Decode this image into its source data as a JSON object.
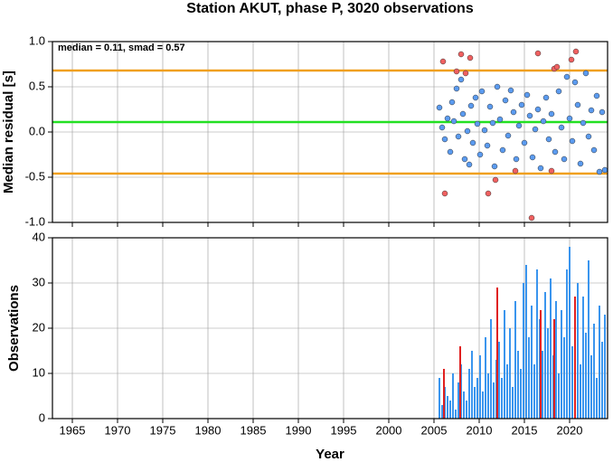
{
  "chart_data": [
    {
      "type": "scatter",
      "title": "Station AKUT, phase P, 3020 observations",
      "ylabel": "Median residual [s]",
      "annotation": "median = 0.11, smad = 0.57",
      "xlim": [
        1962.8,
        2024.2
      ],
      "xticks": [
        1965,
        1970,
        1975,
        1980,
        1985,
        1990,
        1995,
        2000,
        2005,
        2010,
        2015,
        2020
      ],
      "ylim": [
        -1,
        1
      ],
      "yticks": [
        {
          "value": -1,
          "label": "-1.0"
        },
        -0.5,
        {
          "value": 0,
          "label": "0.0"
        },
        0.5,
        {
          "value": 1,
          "label": "1.0"
        }
      ],
      "grid": true,
      "hlines": [
        {
          "value": 0.68,
          "color": "#f0a020"
        },
        {
          "value": -0.46,
          "color": "#f0a020"
        },
        {
          "value": 0.11,
          "color": "#22e022"
        }
      ],
      "series": [
        {
          "color": "#5b9bf0",
          "x": [
            2005.6,
            2005.9,
            2006.2,
            2006.5,
            2006.8,
            2007.0,
            2007.2,
            2007.5,
            2007.7,
            2008.0,
            2008.2,
            2008.4,
            2008.7,
            2008.9,
            2009.1,
            2009.3,
            2009.6,
            2009.8,
            2010.1,
            2010.3,
            2010.6,
            2010.9,
            2011.2,
            2011.5,
            2011.7,
            2012.0,
            2012.3,
            2012.6,
            2012.9,
            2013.2,
            2013.5,
            2013.8,
            2014.1,
            2014.4,
            2014.7,
            2015.0,
            2015.3,
            2015.6,
            2015.9,
            2016.2,
            2016.5,
            2016.8,
            2017.1,
            2017.4,
            2017.7,
            2018.0,
            2018.4,
            2018.8,
            2019.1,
            2019.4,
            2019.7,
            2020.0,
            2020.3,
            2020.6,
            2020.9,
            2021.2,
            2021.5,
            2021.8,
            2022.1,
            2022.4,
            2022.7,
            2023.0,
            2023.3,
            2023.6,
            2023.9
          ],
          "values": [
            0.27,
            0.05,
            -0.08,
            0.15,
            -0.22,
            0.33,
            0.12,
            0.48,
            -0.05,
            0.58,
            0.2,
            -0.3,
            0.01,
            -0.36,
            0.29,
            -0.12,
            0.38,
            0.09,
            -0.25,
            0.45,
            0.02,
            -0.15,
            0.28,
            0.1,
            -0.38,
            0.5,
            0.14,
            -0.2,
            0.35,
            -0.04,
            0.46,
            0.22,
            -0.3,
            0.07,
            0.3,
            -0.12,
            0.41,
            0.18,
            -0.28,
            0.03,
            0.25,
            -0.4,
            0.12,
            0.38,
            -0.08,
            0.2,
            -0.22,
            0.45,
            0.05,
            -0.3,
            0.61,
            0.15,
            -0.1,
            0.55,
            0.3,
            -0.35,
            0.1,
            0.65,
            -0.05,
            0.24,
            -0.2,
            0.4,
            -0.44,
            0.22,
            -0.42
          ]
        },
        {
          "color": "#f06060",
          "x": [
            2006.0,
            2006.2,
            2007.5,
            2008.0,
            2008.5,
            2009.0,
            2011.0,
            2011.8,
            2014.0,
            2015.8,
            2016.5,
            2018.0,
            2018.3,
            2018.6,
            2020.2,
            2020.7
          ],
          "values": [
            0.78,
            -0.68,
            0.67,
            0.86,
            0.65,
            0.82,
            -0.68,
            -0.53,
            -0.43,
            -0.95,
            0.87,
            -0.43,
            0.7,
            0.72,
            0.8,
            0.89
          ]
        }
      ]
    },
    {
      "type": "bar",
      "ylabel": "Observations",
      "xlabel": "Year",
      "xlim": [
        1962.8,
        2024.2
      ],
      "xticks": [
        1965,
        1970,
        1975,
        1980,
        1985,
        1990,
        1995,
        2000,
        2005,
        2010,
        2015,
        2020
      ],
      "ylim": [
        0,
        40
      ],
      "yticks": [
        0,
        10,
        20,
        30,
        40
      ],
      "grid": true,
      "series": [
        {
          "color": "#3a95ee",
          "x": [
            2005.6,
            2005.9,
            2006.2,
            2006.5,
            2006.8,
            2007.1,
            2007.4,
            2007.7,
            2008.0,
            2008.3,
            2008.6,
            2008.9,
            2009.2,
            2009.5,
            2009.8,
            2010.1,
            2010.4,
            2010.7,
            2011.0,
            2011.3,
            2011.6,
            2011.9,
            2012.2,
            2012.5,
            2012.8,
            2013.1,
            2013.4,
            2013.7,
            2014.0,
            2014.3,
            2014.6,
            2014.9,
            2015.2,
            2015.5,
            2015.8,
            2016.1,
            2016.4,
            2016.7,
            2017.0,
            2017.3,
            2017.6,
            2017.9,
            2018.2,
            2018.5,
            2018.8,
            2019.1,
            2019.4,
            2019.7,
            2020.0,
            2020.3,
            2020.6,
            2020.9,
            2021.2,
            2021.5,
            2021.8,
            2022.1,
            2022.4,
            2022.7,
            2023.0,
            2023.3,
            2023.6,
            2023.9
          ],
          "values": [
            9,
            3,
            7,
            5,
            4,
            10,
            2,
            8,
            12,
            6,
            4,
            11,
            15,
            7,
            9,
            14,
            6,
            18,
            10,
            22,
            8,
            13,
            17,
            9,
            24,
            12,
            20,
            7,
            26,
            15,
            11,
            30,
            34,
            18,
            25,
            12,
            33,
            22,
            15,
            28,
            20,
            31,
            14,
            26,
            10,
            24,
            18,
            33,
            38,
            16,
            22,
            30,
            12,
            27,
            19,
            35,
            14,
            21,
            9,
            25,
            17,
            23
          ]
        },
        {
          "color": "#e02020",
          "x": [
            2006.1,
            2007.9,
            2012.0,
            2016.8,
            2018.3,
            2020.6
          ],
          "values": [
            11,
            16,
            29,
            24,
            22,
            27
          ]
        }
      ]
    }
  ]
}
